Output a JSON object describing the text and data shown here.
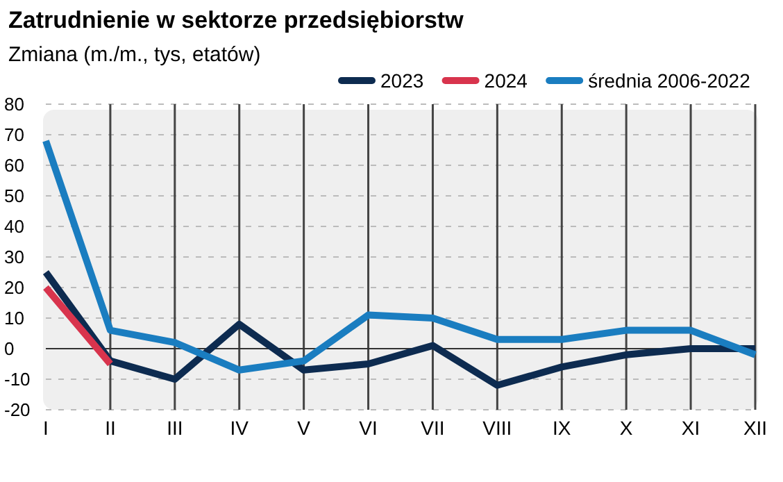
{
  "chart_data": {
    "type": "line",
    "title": "Zatrudnienie w sektorze przedsiębiorstw",
    "subtitle": "Zmiana (m./m., tys, etatów)",
    "categories": [
      "I",
      "II",
      "III",
      "IV",
      "V",
      "VI",
      "VII",
      "VIII",
      "IX",
      "X",
      "XI",
      "XII"
    ],
    "series": [
      {
        "name": "2023",
        "color": "#0d2b50",
        "values": [
          25,
          -4,
          -10,
          8,
          -7,
          -5,
          1,
          -12,
          -6,
          -2,
          0,
          0
        ]
      },
      {
        "name": "2024",
        "color": "#d8344d",
        "values": [
          20,
          -5,
          null,
          null,
          null,
          null,
          null,
          null,
          null,
          null,
          null,
          null
        ]
      },
      {
        "name": "średnia 2006-2022",
        "color": "#1a7dc0",
        "values": [
          68,
          6,
          2,
          -7,
          -4,
          11,
          10,
          3,
          3,
          6,
          6,
          -2
        ]
      }
    ],
    "ylim": [
      -20,
      80
    ],
    "yticks": [
      -20,
      -10,
      0,
      10,
      20,
      30,
      40,
      50,
      60,
      70,
      80
    ],
    "grid": true,
    "legend": "top right",
    "marker": "none",
    "line_style": "solid"
  }
}
